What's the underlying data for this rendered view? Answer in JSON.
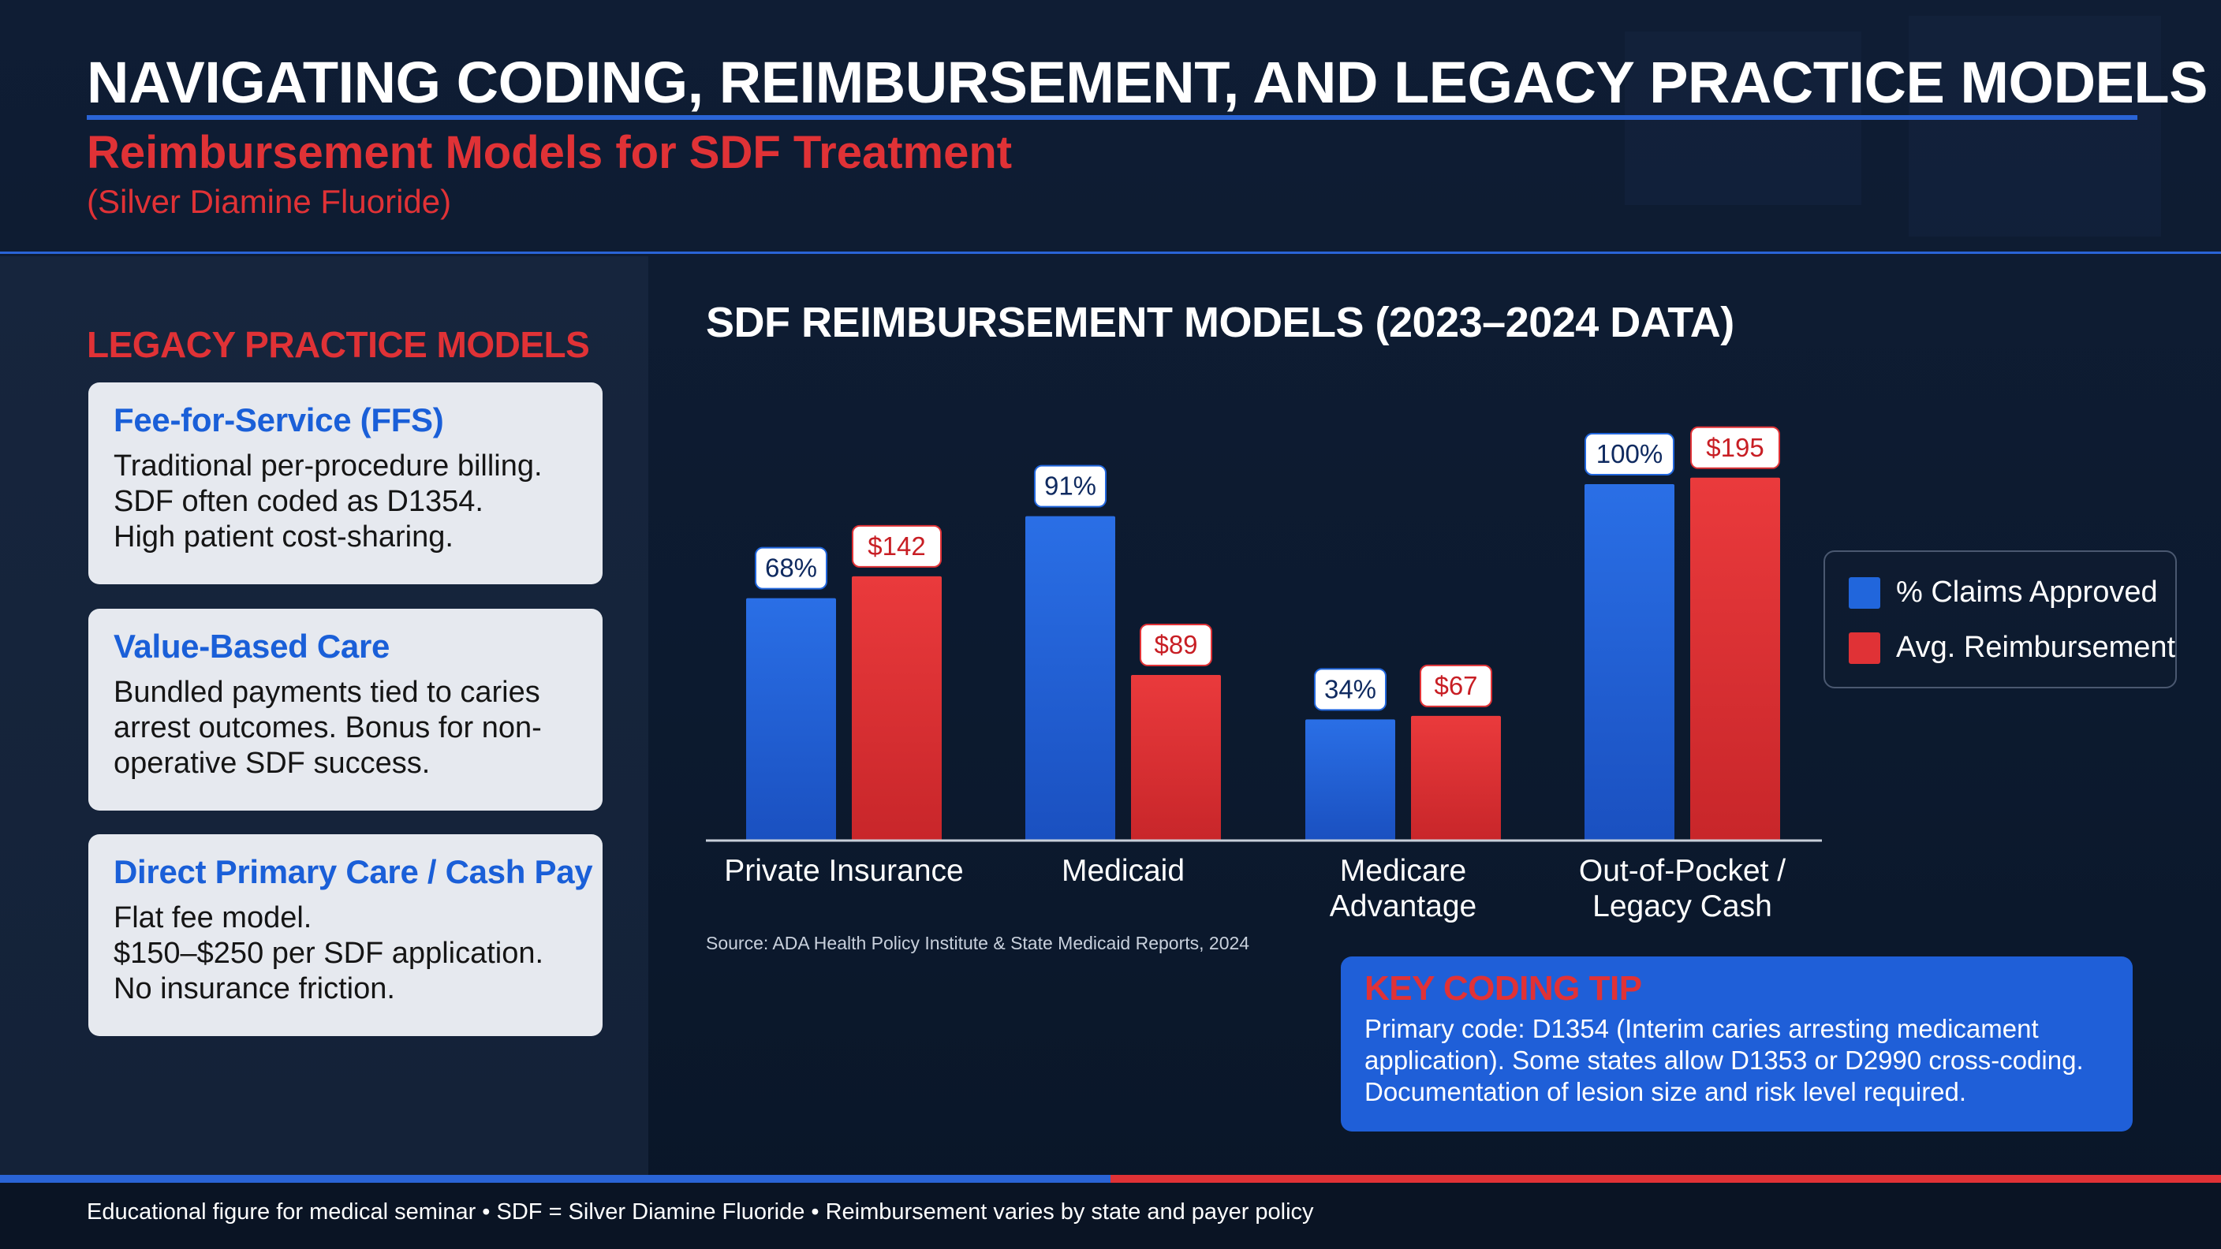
{
  "header": {
    "title": "NAVIGATING CODING, REIMBURSEMENT, AND LEGACY PRACTICE MODELS",
    "subtitle": "Reimbursement Models for SDF Treatment",
    "subtitle_note": "(Silver Diamine Fluoride)"
  },
  "legacy": {
    "heading": "LEGACY PRACTICE MODELS",
    "cards": [
      {
        "title": "Fee-for-Service (FFS)",
        "body": "Traditional per-procedure billing.\nSDF often coded as D1354.\nHigh patient cost-sharing."
      },
      {
        "title": "Value-Based Care",
        "body": "Bundled payments tied to caries\narrest outcomes. Bonus for non-\noperative SDF success."
      },
      {
        "title": "Direct Primary Care / Cash Pay",
        "body": "Flat fee model.\n$150–$250 per SDF application.\nNo insurance friction."
      }
    ]
  },
  "chart_data": {
    "type": "bar",
    "title": "SDF REIMBURSEMENT MODELS (2023–2024 DATA)",
    "categories": [
      "Private Insurance",
      "Medicaid",
      "Medicare Advantage",
      "Out-of-Pocket / Legacy Cash"
    ],
    "category_lines": [
      [
        "Private Insurance"
      ],
      [
        "Medicaid"
      ],
      [
        "Medicare",
        "Advantage"
      ],
      [
        "Out-of-Pocket /",
        "Legacy Cash"
      ]
    ],
    "series": [
      {
        "name": "% Claims Approved",
        "values": [
          68,
          91,
          34,
          100
        ],
        "labels": [
          "68%",
          "91%",
          "34%",
          "100%"
        ],
        "color": "#2166dc"
      },
      {
        "name": "Avg. Reimbursement",
        "values": [
          142,
          89,
          67,
          195
        ],
        "labels": [
          "$142",
          "$89",
          "$67",
          "$195"
        ],
        "color": "#e03236"
      }
    ],
    "legend_position": "right",
    "grid": false,
    "source": "Source: ADA Health Policy Institute & State Medicaid Reports, 2024"
  },
  "tip": {
    "title": "KEY CODING TIP",
    "body": "Primary code: D1354 (Interim caries arresting medicament application). Some states allow D1353 or D2990 cross-coding. Documentation of lesion size and risk level required."
  },
  "footer": {
    "text": "Educational figure for medical seminar • SDF = Silver Diamine Fluoride • Reimbursement varies by state and payer policy"
  },
  "colors": {
    "accent_blue": "#2a64d6",
    "accent_red": "#e03236",
    "background": "#0d1a2e"
  }
}
